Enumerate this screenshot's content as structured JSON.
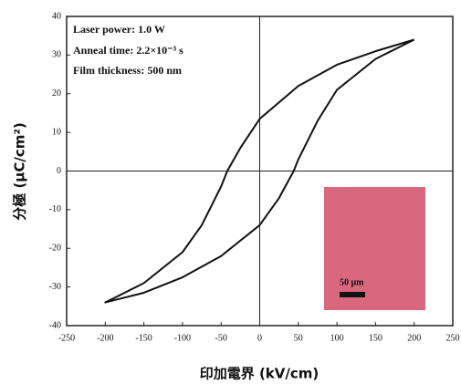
{
  "chart_data": {
    "type": "line",
    "x_label": "印加電界 (kV/cm)",
    "y_label": "分極 (μC/cm²)",
    "annotations": [
      "Laser power: 1.0 W",
      "Anneal time: 2.2×10⁻³ s",
      "Film thickness: 500 nm"
    ],
    "inset_label": "50 μm",
    "x": [
      200,
      150,
      100,
      50,
      0,
      -25,
      -42,
      -50,
      -75,
      -100,
      -150,
      -200,
      -150,
      -100,
      -50,
      0,
      25,
      44,
      50,
      75,
      100,
      150,
      200
    ],
    "series": [
      {
        "color": "#111111",
        "values": [
          34,
          31,
          27.5,
          22,
          13.5,
          6,
          0,
          -4,
          -14,
          -21,
          -29,
          -34,
          -31.5,
          -27.5,
          -22,
          -14,
          -7,
          0,
          3,
          13,
          21,
          29,
          34
        ]
      }
    ],
    "xlim": [
      -250,
      250
    ],
    "xticks": [
      -250,
      -200,
      -150,
      -100,
      -50,
      0,
      50,
      100,
      150,
      200,
      250
    ],
    "ylim": [
      -40,
      40
    ],
    "yticks": [
      -40,
      -30,
      -20,
      -10,
      0,
      10,
      20,
      30,
      40
    ]
  }
}
